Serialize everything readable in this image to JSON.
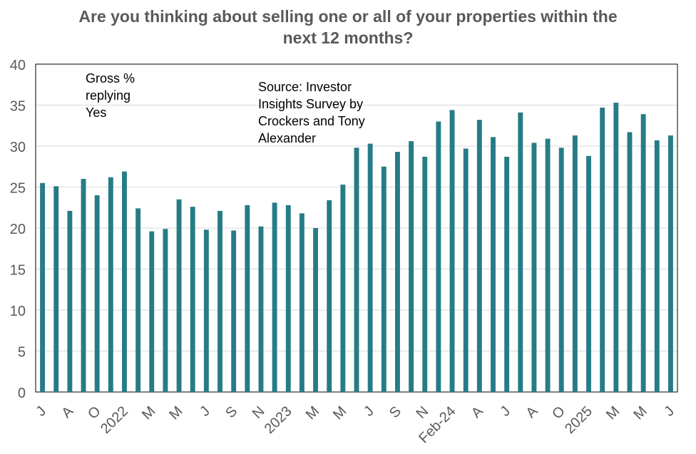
{
  "chart_data": {
    "type": "bar",
    "title_lines": [
      "Are you thinking about selling one or all of your properties within the",
      "next 12 months?"
    ],
    "annotations": [
      {
        "lines": [
          "Gross %",
          "replying",
          "Yes"
        ]
      },
      {
        "lines": [
          "Source: Investor",
          "Insights Survey by",
          "Crockers and Tony",
          "Alexander"
        ]
      }
    ],
    "ylim": [
      0,
      40
    ],
    "yticks": [
      0,
      5,
      10,
      15,
      20,
      25,
      30,
      35,
      40
    ],
    "grid": true,
    "legend": "none",
    "bar_color": "#267C86",
    "values": [
      25.5,
      25.1,
      22.1,
      26.0,
      24.0,
      26.2,
      26.9,
      22.4,
      19.6,
      19.9,
      23.5,
      22.6,
      19.8,
      22.1,
      19.7,
      22.8,
      20.2,
      23.1,
      22.8,
      21.8,
      20.0,
      23.4,
      25.3,
      29.8,
      30.3,
      27.5,
      29.3,
      30.6,
      28.7,
      33.0,
      34.4,
      29.7,
      33.2,
      31.1,
      28.7,
      34.1,
      30.4,
      30.9,
      29.8,
      31.3,
      28.8,
      34.7,
      35.3,
      31.7,
      33.9,
      30.7,
      31.3
    ],
    "x_tick_labels": [
      "J",
      "",
      "A",
      "",
      "O",
      "",
      "2022",
      "",
      "M",
      "",
      "M",
      "",
      "J",
      "",
      "S",
      "",
      "N",
      "",
      "2023",
      "",
      "M",
      "",
      "M",
      "",
      "J",
      "",
      "S",
      "",
      "N",
      "",
      "Feb-24",
      "",
      "A",
      "",
      "J",
      "",
      "A",
      "",
      "O",
      "",
      "2025",
      "",
      "M",
      "",
      "M",
      "",
      "J"
    ]
  }
}
